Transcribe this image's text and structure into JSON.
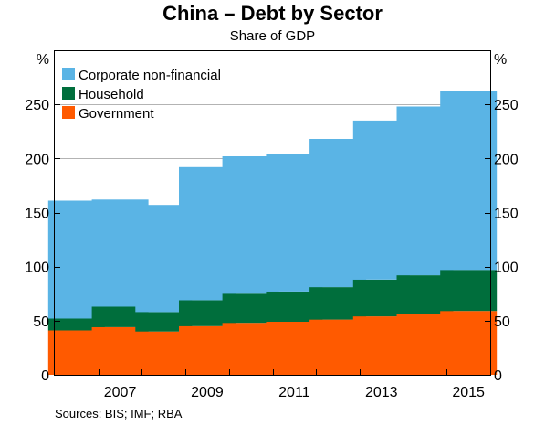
{
  "header": {
    "title": "China – Debt by Sector",
    "subtitle": "Share of GDP"
  },
  "footer": {
    "source": "Sources:  BIS; IMF; RBA"
  },
  "chart_data": {
    "type": "bar",
    "stacked": true,
    "title": "China – Debt by Sector",
    "subtitle": "Share of GDP",
    "y_unit_left": "%",
    "y_unit_right": "%",
    "ylim": [
      0,
      300
    ],
    "yticks": [
      0,
      50,
      100,
      150,
      200,
      250
    ],
    "grid": true,
    "legend_position": "top-left",
    "categories": [
      "2006",
      "2007",
      "2008",
      "2009",
      "2010",
      "2011",
      "2012",
      "2013",
      "2014",
      "2015"
    ],
    "x_tick_labels": [
      "2007",
      "2009",
      "2011",
      "2013",
      "2015"
    ],
    "series": [
      {
        "name": "Government",
        "color": "#ff5a00",
        "values": [
          41,
          44,
          40,
          45,
          48,
          49,
          51,
          54,
          56,
          59
        ]
      },
      {
        "name": "Household",
        "color": "#006e3c",
        "values": [
          11,
          19,
          18,
          24,
          27,
          28,
          30,
          34,
          36,
          38
        ]
      },
      {
        "name": "Corporate non-financial",
        "color": "#5ab4e5",
        "values": [
          109,
          99,
          99,
          123,
          127,
          127,
          137,
          147,
          156,
          165
        ]
      }
    ],
    "legend_order": [
      "Corporate non-financial",
      "Household",
      "Government"
    ]
  }
}
